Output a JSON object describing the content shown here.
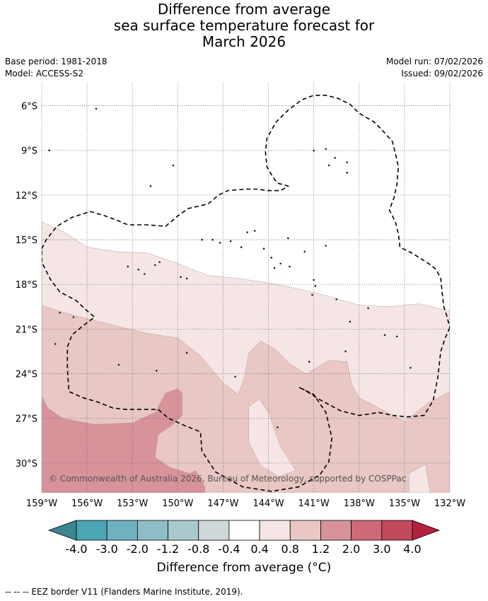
{
  "title": {
    "line1": "Difference from average",
    "line2": "sea surface temperature forecast for",
    "line3": "March 2026"
  },
  "meta": {
    "base_period": "Base period: 1981-2018",
    "model": "Model: ACCESS-S2",
    "model_run": "Model run: 07/02/2026",
    "issued": "Issued: 09/02/2026"
  },
  "copyright": "© Commonwealth of Australia 2026, Bureau of Meteorology, supported by COSPPac",
  "footer": "-- -- -- EEZ border V11 (Flanders Marine Institute, 2019).",
  "colors": {
    "neg_4": "#3d8591",
    "neg_3": "#4aa5b5",
    "neg_2": "#6fb1c0",
    "neg_12": "#8ebdc8",
    "neg_08": "#aac9cd",
    "neg_04": "#d0d7d9",
    "zero": "#ffffff",
    "pos_04": "#f5e6e5",
    "pos_08": "#e8c7c4",
    "pos_12": "#d7929a",
    "pos_20": "#cf6977",
    "pos_30": "#c24a5b",
    "pos_40": "#b5203f"
  },
  "chart_data": {
    "type": "heatmap",
    "xlim": [
      -159,
      -132
    ],
    "ylim": [
      -32,
      -4.5
    ],
    "xticks": [
      "159°W",
      "156°W",
      "153°W",
      "150°W",
      "147°W",
      "144°W",
      "141°W",
      "138°W",
      "135°W",
      "132°W"
    ],
    "xtick_values": [
      -159,
      -156,
      -153,
      -150,
      -147,
      -144,
      -141,
      -138,
      -135,
      -132
    ],
    "yticks": [
      "6°S",
      "9°S",
      "12°S",
      "15°S",
      "18°S",
      "21°S",
      "24°S",
      "27°S",
      "30°S"
    ],
    "ytick_values": [
      -6,
      -9,
      -12,
      -15,
      -18,
      -21,
      -24,
      -27,
      -30
    ],
    "grid": true,
    "colorbar": {
      "label": "Difference from average (°C)",
      "ticks": [
        "-4.0",
        "-3.0",
        "-2.0",
        "-1.2",
        "-0.8",
        "-0.4",
        "0.4",
        "0.8",
        "1.2",
        "2.0",
        "3.0",
        "4.0"
      ],
      "tick_values": [
        -4.0,
        -3.0,
        -2.0,
        -1.2,
        -0.8,
        -0.4,
        0.4,
        0.8,
        1.2,
        2.0,
        3.0,
        4.0
      ],
      "extend": "both"
    },
    "regions": [
      {
        "name": "0.4 to 0.8",
        "color_key": "pos_04",
        "lonlat": [
          [
            -159,
            -13.8
          ],
          [
            -157.5,
            -14.5
          ],
          [
            -156,
            -15.5
          ],
          [
            -154,
            -15.8
          ],
          [
            -152,
            -15.9
          ],
          [
            -150,
            -16.6
          ],
          [
            -148,
            -17.4
          ],
          [
            -146,
            -17.6
          ],
          [
            -144,
            -17.9
          ],
          [
            -142,
            -18.3
          ],
          [
            -140,
            -18.8
          ],
          [
            -138,
            -19.4
          ],
          [
            -136,
            -19.5
          ],
          [
            -134,
            -19.3
          ],
          [
            -132,
            -19.8
          ],
          [
            -132,
            -32
          ],
          [
            -159,
            -32
          ]
        ]
      },
      {
        "name": "0.8 to 1.2",
        "color_key": "pos_08",
        "lonlat": [
          [
            -159,
            -19.4
          ],
          [
            -157.5,
            -19.9
          ],
          [
            -156,
            -20.3
          ],
          [
            -154,
            -20.8
          ],
          [
            -152,
            -21.3
          ],
          [
            -150,
            -21.6
          ],
          [
            -148.5,
            -22.8
          ],
          [
            -147,
            -24.6
          ],
          [
            -146,
            -25.4
          ],
          [
            -145.6,
            -24.3
          ],
          [
            -145.3,
            -22.6
          ],
          [
            -144.5,
            -21.8
          ],
          [
            -143.5,
            -22.4
          ],
          [
            -142.5,
            -23.4
          ],
          [
            -141.5,
            -24.0
          ],
          [
            -140,
            -23.1
          ],
          [
            -138.8,
            -23.2
          ],
          [
            -138.5,
            -24.7
          ],
          [
            -138,
            -25.6
          ],
          [
            -136.5,
            -26.4
          ],
          [
            -135,
            -27.2
          ],
          [
            -133.5,
            -26.0
          ],
          [
            -132,
            -25.2
          ],
          [
            -132,
            -32
          ],
          [
            -133.3,
            -32
          ],
          [
            -133.6,
            -30.1
          ],
          [
            -134.7,
            -30.7
          ],
          [
            -134.7,
            -32
          ],
          [
            -159,
            -32
          ]
        ]
      },
      {
        "name": "0.4 to 0.8 tongue",
        "color_key": "pos_04",
        "lonlat": [
          [
            -145.3,
            -26.2
          ],
          [
            -144.6,
            -25.7
          ],
          [
            -144.0,
            -26.6
          ],
          [
            -143.2,
            -28.9
          ],
          [
            -142.2,
            -30.5
          ],
          [
            -143.3,
            -30.9
          ],
          [
            -144.5,
            -30.2
          ],
          [
            -145.3,
            -28.6
          ]
        ]
      },
      {
        "name": "1.2 to 2.0",
        "color_key": "pos_12",
        "lonlat": [
          [
            -159,
            -25.5
          ],
          [
            -158.6,
            -26.3
          ],
          [
            -157.6,
            -27.0
          ],
          [
            -155.5,
            -27.4
          ],
          [
            -153,
            -27.3
          ],
          [
            -151.5,
            -26.6
          ],
          [
            -150.8,
            -25.3
          ],
          [
            -150,
            -25.0
          ],
          [
            -149.7,
            -25.3
          ],
          [
            -149.7,
            -26.8
          ],
          [
            -150.3,
            -27.4
          ],
          [
            -151.3,
            -28.1
          ],
          [
            -151.5,
            -29.6
          ],
          [
            -150.5,
            -30.3
          ],
          [
            -149.2,
            -30.7
          ],
          [
            -148.8,
            -30.5
          ],
          [
            -148.2,
            -31.6
          ],
          [
            -148.2,
            -32
          ],
          [
            -159,
            -32
          ]
        ]
      }
    ],
    "eez_border": [
      [
        [
          -159,
          -15.6
        ],
        [
          -158.7,
          -15.0
        ],
        [
          -158.0,
          -14.1
        ],
        [
          -157.0,
          -13.5
        ],
        [
          -155.8,
          -13.1
        ],
        [
          -154.8,
          -13.4
        ],
        [
          -154.0,
          -13.7
        ],
        [
          -153.3,
          -14.0
        ],
        [
          -152.0,
          -14.0
        ],
        [
          -150.8,
          -14.1
        ],
        [
          -150.0,
          -13.4
        ],
        [
          -149.3,
          -12.9
        ],
        [
          -148.0,
          -12.6
        ],
        [
          -147.3,
          -12.0
        ],
        [
          -146.7,
          -11.7
        ],
        [
          -145.5,
          -11.6
        ],
        [
          -144.8,
          -11.6
        ],
        [
          -144.0,
          -11.7
        ],
        [
          -143.2,
          -11.7
        ],
        [
          -142.7,
          -11.4
        ],
        [
          -143.0,
          -11.3
        ],
        [
          -143.4,
          -11.2
        ],
        [
          -143.7,
          -10.8
        ],
        [
          -144.1,
          -10.1
        ],
        [
          -144.2,
          -9.1
        ],
        [
          -144.1,
          -8.2
        ],
        [
          -143.5,
          -7.1
        ],
        [
          -142.7,
          -6.3
        ],
        [
          -141.8,
          -5.6
        ],
        [
          -141.0,
          -5.3
        ],
        [
          -140.2,
          -5.3
        ],
        [
          -139.4,
          -5.5
        ],
        [
          -138.6,
          -5.9
        ],
        [
          -138.0,
          -6.5
        ],
        [
          -137.0,
          -7.1
        ],
        [
          -136.5,
          -7.6
        ],
        [
          -135.8,
          -8.4
        ],
        [
          -135.6,
          -9.2
        ],
        [
          -135.4,
          -10.1
        ],
        [
          -135.5,
          -11.3
        ],
        [
          -135.7,
          -12.2
        ],
        [
          -136.0,
          -13.0
        ],
        [
          -135.6,
          -13.8
        ],
        [
          -135.4,
          -14.6
        ],
        [
          -135.3,
          -15.5
        ],
        [
          -134.5,
          -15.9
        ],
        [
          -133.4,
          -16.6
        ],
        [
          -132.9,
          -17.0
        ],
        [
          -132.6,
          -17.6
        ],
        [
          -132.5,
          -18.6
        ],
        [
          -132.4,
          -19.5
        ],
        [
          -132.2,
          -20.1
        ],
        [
          -132,
          -20.9
        ]
      ],
      [
        [
          -132,
          -20.9
        ],
        [
          -132.3,
          -21.6
        ],
        [
          -132.6,
          -22.5
        ],
        [
          -132.8,
          -24.3
        ],
        [
          -133.1,
          -25.8
        ],
        [
          -133.7,
          -26.8
        ],
        [
          -134.8,
          -26.9
        ],
        [
          -135.8,
          -26.8
        ],
        [
          -136.7,
          -26.6
        ],
        [
          -137.3,
          -26.7
        ],
        [
          -138.0,
          -26.8
        ],
        [
          -139.2,
          -26.5
        ],
        [
          -140.5,
          -25.8
        ],
        [
          -141.6,
          -25.1
        ],
        [
          -142.0,
          -24.9
        ],
        [
          -141.0,
          -25.4
        ],
        [
          -140.2,
          -26.6
        ],
        [
          -139.8,
          -28.3
        ],
        [
          -140.0,
          -29.9
        ],
        [
          -140.6,
          -30.8
        ],
        [
          -142.0,
          -31.6
        ],
        [
          -143.8,
          -31.9
        ],
        [
          -145.7,
          -31.6
        ],
        [
          -147.5,
          -30.6
        ],
        [
          -148.4,
          -29.2
        ],
        [
          -148.5,
          -27.9
        ],
        [
          -149.5,
          -27.5
        ],
        [
          -150.6,
          -27.0
        ],
        [
          -151.3,
          -26.4
        ],
        [
          -152.0,
          -26.4
        ],
        [
          -153.4,
          -26.4
        ],
        [
          -154.3,
          -26.3
        ],
        [
          -155.3,
          -25.9
        ],
        [
          -156.3,
          -25.6
        ],
        [
          -157.2,
          -25.2
        ],
        [
          -157.3,
          -23.7
        ],
        [
          -157.3,
          -22.2
        ],
        [
          -157.0,
          -21.4
        ],
        [
          -156.3,
          -20.8
        ],
        [
          -155.5,
          -20.2
        ],
        [
          -156.2,
          -19.6
        ],
        [
          -156.7,
          -19.1
        ],
        [
          -157.8,
          -18.5
        ],
        [
          -158.4,
          -17.7
        ],
        [
          -159,
          -16.5
        ],
        [
          -159,
          -15.6
        ]
      ]
    ],
    "islands": [
      [
        -158.5,
        -9.0
      ],
      [
        -155.4,
        -6.2
      ],
      [
        -153.3,
        -16.8
      ],
      [
        -152.6,
        -17.0
      ],
      [
        -151.5,
        -16.7
      ],
      [
        -151.2,
        -16.5
      ],
      [
        -149.8,
        -17.5
      ],
      [
        -149.4,
        -17.6
      ],
      [
        -148.4,
        -15.0
      ],
      [
        -147.7,
        -15.0
      ],
      [
        -147.2,
        -15.2
      ],
      [
        -146.5,
        -15.1
      ],
      [
        -145.8,
        -15.5
      ],
      [
        -145.4,
        -14.5
      ],
      [
        -144.9,
        -14.4
      ],
      [
        -144.3,
        -15.6
      ],
      [
        -143.8,
        -16.2
      ],
      [
        -143.6,
        -16.9
      ],
      [
        -143.2,
        -16.6
      ],
      [
        -142.6,
        -16.8
      ],
      [
        -141.6,
        -15.8
      ],
      [
        -140.2,
        -15.4
      ],
      [
        -140.9,
        -18.1
      ],
      [
        -141.1,
        -18.7
      ],
      [
        -139.5,
        -19.0
      ],
      [
        -138.6,
        -20.5
      ],
      [
        -137.4,
        -19.6
      ],
      [
        -136.3,
        -21.4
      ],
      [
        -135.5,
        -21.5
      ],
      [
        -134.6,
        -23.6
      ],
      [
        -141.3,
        -23.2
      ],
      [
        -143.4,
        -27.6
      ],
      [
        -138.9,
        -22.5
      ],
      [
        -141.0,
        -9.0
      ],
      [
        -140.2,
        -8.9
      ],
      [
        -139.6,
        -9.5
      ],
      [
        -140.0,
        -10.0
      ],
      [
        -138.8,
        -9.8
      ],
      [
        -138.8,
        -10.5
      ],
      [
        -142.7,
        -14.9
      ],
      [
        -141.0,
        -17.7
      ],
      [
        -157.8,
        -19.9
      ],
      [
        -156.9,
        -20.2
      ],
      [
        -158.1,
        -22.0
      ],
      [
        -153.9,
        -23.4
      ],
      [
        -151.4,
        -23.8
      ],
      [
        -149.4,
        -22.6
      ],
      [
        -146.2,
        -24.2
      ],
      [
        -150.3,
        -10.0
      ],
      [
        -151.8,
        -11.4
      ],
      [
        -152.2,
        -17.3
      ]
    ]
  }
}
